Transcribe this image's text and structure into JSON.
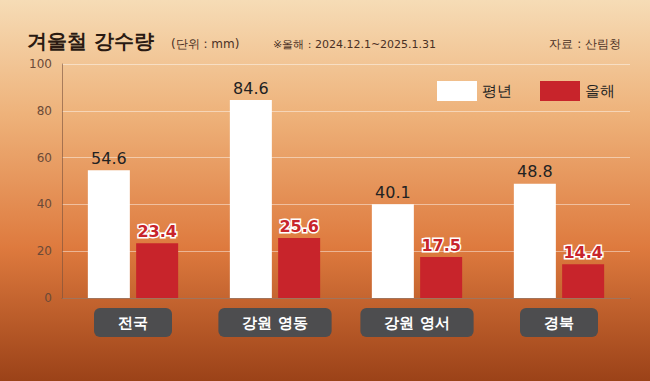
{
  "chart_data": {
    "type": "bar",
    "title": "겨울철 강수량",
    "subtitle": "(단위 : mm)",
    "annotations": [
      "※올해 : 2024.12.1~2025.1.31",
      "자료 : 산림청"
    ],
    "categories": [
      "전국",
      "강원 영동",
      "강원 영서",
      "경북"
    ],
    "series": [
      {
        "name": "평년",
        "color": "#ffffff",
        "values": [
          54.6,
          84.6,
          40.1,
          48.8
        ]
      },
      {
        "name": "올해",
        "color": "#c8242b",
        "values": [
          23.4,
          25.6,
          17.5,
          14.4
        ]
      }
    ],
    "ylim": [
      0,
      100
    ],
    "yticks": [
      0,
      20,
      40,
      60,
      80,
      100
    ],
    "grid": true,
    "legend": "upper right",
    "data_labels": true
  }
}
